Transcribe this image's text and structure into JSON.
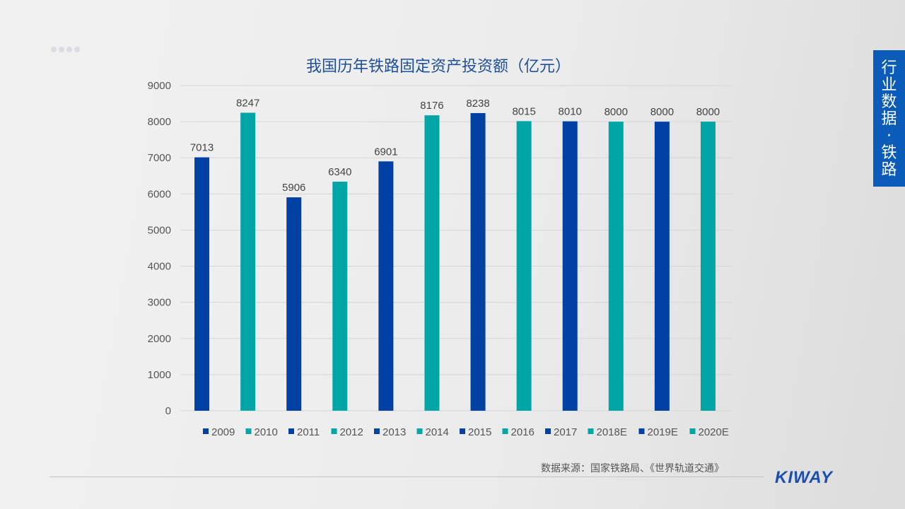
{
  "tab": {
    "text": "行业数据·铁路"
  },
  "source": "数据来源：国家铁路局、《世界轨道交通》",
  "logo": "KIWAY",
  "colors": {
    "dark_blue": "#0041a3",
    "teal": "#00a6a6",
    "tab": "#0b5cb8"
  },
  "chart_data": {
    "type": "bar",
    "title": "我国历年铁路固定资产投资额（亿元）",
    "categories": [
      "2009",
      "2010",
      "2011",
      "2012",
      "2013",
      "2014",
      "2015",
      "2016",
      "2017",
      "2018E",
      "2019E",
      "2020E"
    ],
    "values": [
      7013,
      8247,
      5906,
      6340,
      6901,
      8176,
      8238,
      8015,
      8010,
      8000,
      8000,
      8000
    ],
    "bar_colors": [
      "#0041a3",
      "#00a6a6",
      "#0041a3",
      "#00a6a6",
      "#0041a3",
      "#00a6a6",
      "#0041a3",
      "#00a6a6",
      "#0041a3",
      "#00a6a6",
      "#0041a3",
      "#00a6a6"
    ],
    "yticks": [
      0,
      1000,
      2000,
      3000,
      4000,
      5000,
      6000,
      7000,
      8000,
      9000
    ],
    "ylim": [
      0,
      9000
    ],
    "grid": true,
    "legend": "bottom",
    "data_labels": true
  }
}
